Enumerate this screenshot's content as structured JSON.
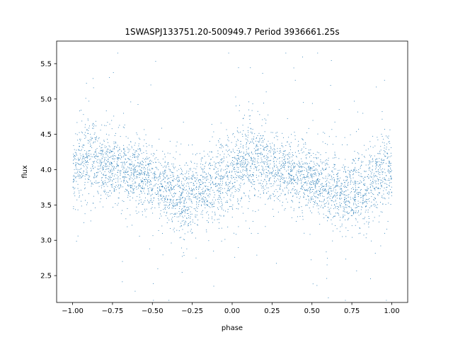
{
  "chart_data": {
    "type": "scatter",
    "title": "1SWASPJ133751.20-500949.7 Period 3936661.25s",
    "xlabel": "phase",
    "ylabel": "flux",
    "xlim": [
      -1.1,
      1.1
    ],
    "ylim": [
      2.12,
      5.82
    ],
    "x_ticks": [
      -1.0,
      -0.75,
      -0.5,
      -0.25,
      0.0,
      0.25,
      0.5,
      0.75,
      1.0
    ],
    "x_tick_labels": [
      "−1.00",
      "−0.75",
      "−0.50",
      "−0.25",
      "0.00",
      "0.25",
      "0.50",
      "0.75",
      "1.00"
    ],
    "y_ticks": [
      2.5,
      3.0,
      3.5,
      4.0,
      4.5,
      5.0,
      5.5
    ],
    "y_tick_labels": [
      "2.5",
      "3.0",
      "3.5",
      "4.0",
      "4.5",
      "5.0",
      "5.5"
    ],
    "grid": false,
    "legend": "none",
    "marker_color": "#1f77b4",
    "x_range_of_points": [
      -1.0,
      1.0
    ],
    "profile": {
      "phase": [
        -1.0,
        -0.9,
        -0.8,
        -0.7,
        -0.6,
        -0.5,
        -0.4,
        -0.3,
        -0.2,
        -0.1,
        0.0,
        0.1,
        0.2,
        0.3,
        0.4,
        0.5,
        0.6,
        0.7,
        0.8,
        0.9,
        1.0
      ],
      "median_flux": [
        4.0,
        4.15,
        4.05,
        4.0,
        3.95,
        3.85,
        3.75,
        3.6,
        3.7,
        3.85,
        4.0,
        4.15,
        4.05,
        4.0,
        3.95,
        3.85,
        3.75,
        3.6,
        3.7,
        3.85,
        4.0
      ],
      "core_spread": [
        0.35,
        0.4,
        0.35,
        0.3,
        0.3,
        0.3,
        0.35,
        0.35,
        0.35,
        0.35,
        0.35,
        0.4,
        0.35,
        0.3,
        0.3,
        0.3,
        0.35,
        0.35,
        0.35,
        0.35,
        0.35
      ]
    },
    "flux_extremes": {
      "min": 2.15,
      "max": 5.65
    }
  }
}
